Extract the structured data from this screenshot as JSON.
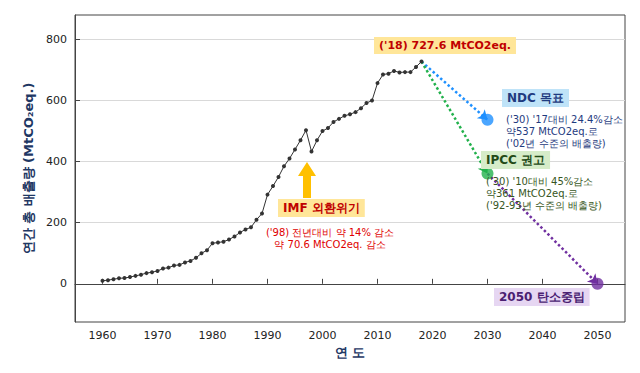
{
  "chart_data": {
    "type": "line",
    "x_label": "연 도",
    "y_label": "연간 총 배출량 (MtCO₂eq.)",
    "x": [
      1960,
      1961,
      1962,
      1963,
      1964,
      1965,
      1966,
      1967,
      1968,
      1969,
      1970,
      1971,
      1972,
      1973,
      1974,
      1975,
      1976,
      1977,
      1978,
      1979,
      1980,
      1981,
      1982,
      1983,
      1984,
      1985,
      1986,
      1987,
      1988,
      1989,
      1990,
      1991,
      1992,
      1993,
      1994,
      1995,
      1996,
      1997,
      1998,
      1999,
      2000,
      2001,
      2002,
      2003,
      2004,
      2005,
      2006,
      2007,
      2008,
      2009,
      2010,
      2011,
      2012,
      2013,
      2014,
      2015,
      2016,
      2017,
      2018
    ],
    "values": [
      10,
      12,
      15,
      18,
      19,
      22,
      26,
      30,
      35,
      38,
      42,
      50,
      53,
      60,
      62,
      70,
      75,
      85,
      100,
      110,
      133,
      135,
      138,
      145,
      155,
      168,
      178,
      185,
      210,
      230,
      292,
      320,
      350,
      385,
      410,
      440,
      470,
      503,
      433,
      470,
      500,
      510,
      530,
      540,
      550,
      555,
      562,
      575,
      592,
      600,
      657,
      685,
      688,
      697,
      692,
      693,
      693,
      710,
      727.6
    ],
    "color": "#333333",
    "marker": "circle",
    "xlim": [
      1955,
      2055
    ],
    "xticks": [
      1960,
      1970,
      1980,
      1990,
      2000,
      2010,
      2020,
      2030,
      2040,
      2050
    ],
    "ylim": [
      -125,
      880
    ],
    "yticks": [
      0,
      200,
      400,
      600,
      800
    ],
    "grid": true,
    "annotations": {
      "peak": "('18) 727.6 MtCO2eq.",
      "event": {
        "label": "IMF 외환위기",
        "note": "('98) 전년대비 약 14% 감소\n약 70.6 MtCO2eq. 감소"
      }
    },
    "targets": [
      {
        "label": "NDC 목표",
        "note": "('30) '17대비 24.4%감소\n약537 MtCO2eq.로\n('02년 수준의 배출량)",
        "x": 2030,
        "value": 537,
        "color": "#1e90ff",
        "line_style": "dotted"
      },
      {
        "label": "IPCC 권고",
        "note": "('30) '10대비 45%감소\n약361 MtCO2eq.로\n('92-93년 수준의 배출량)",
        "x": 2030,
        "value": 361,
        "color": "#22b14c",
        "line_style": "dotted"
      },
      {
        "label": "2050 탄소중립",
        "x": 2050,
        "value": 0,
        "color": "#7030a0",
        "line_style": "dotted"
      }
    ]
  }
}
